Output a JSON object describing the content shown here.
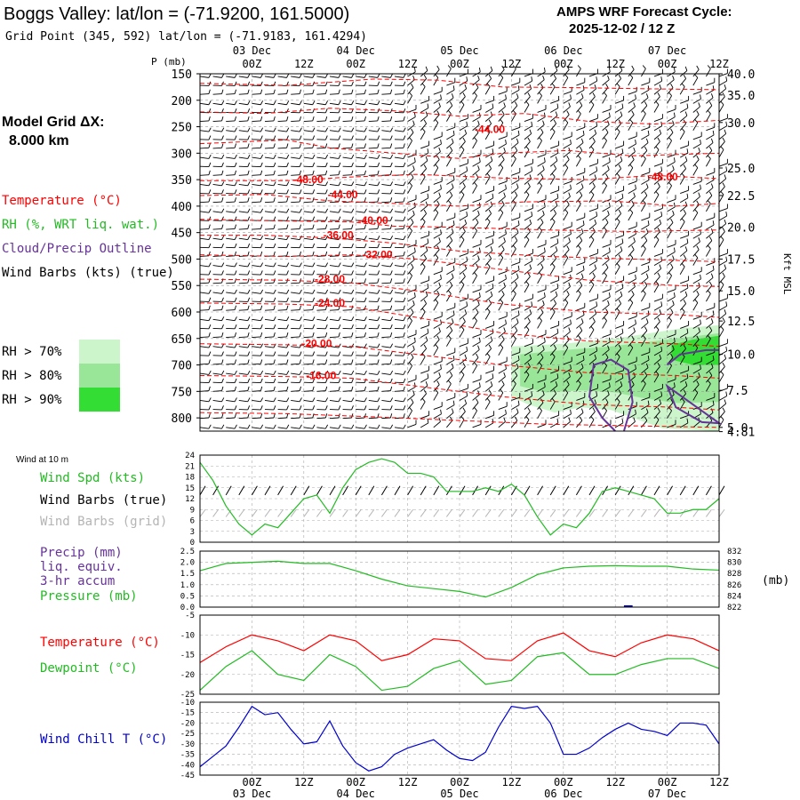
{
  "header": {
    "station_title": "Boggs Valley:  lat/lon = (-71.9200, 161.5000)",
    "grid_point": "Grid Point (345, 592) lat/lon = (-71.9183, 161.4294)",
    "cycle_title": "AMPS WRF Forecast Cycle:",
    "cycle_value": "2025-12-02 / 12  Z",
    "model_grid_label": "Model Grid ΔX:",
    "model_grid_value": "8.000 km"
  },
  "legend": {
    "temperature": "Temperature (°C)",
    "rh": "RH (%, WRT liq. wat.)",
    "cloud": "Cloud/Precip Outline",
    "wind": "Wind Barbs (kts) (true)",
    "rh70": "RH > 70%",
    "rh80": "RH > 80%",
    "rh90": "RH > 90%"
  },
  "colors": {
    "temperature": "#ff0000",
    "rh": "#22bb22",
    "cloud": "#663399",
    "wind": "#000000",
    "wind_grid": "#b4b4b4",
    "windchill": "#0000cc",
    "rh70": "#ccf5cc",
    "rh80": "#99e699",
    "rh90": "#33dd33"
  },
  "chart_data": [
    {
      "type": "contour",
      "name": "cross-section",
      "ylabel": "P (mb)",
      "yticks": [
        150,
        200,
        250,
        300,
        350,
        400,
        450,
        500,
        550,
        600,
        650,
        700,
        750,
        800
      ],
      "ylim": [
        150,
        825
      ],
      "right_axis_label": "Kft MSL",
      "right_ticks": [
        {
          "p": 150,
          "label": "40.0"
        },
        {
          "p": 190,
          "label": "35.0"
        },
        {
          "p": 242,
          "label": "30.0"
        },
        {
          "p": 328,
          "label": "25.0"
        },
        {
          "p": 380,
          "label": "22.5"
        },
        {
          "p": 440,
          "label": "20.0"
        },
        {
          "p": 500,
          "label": "17.5"
        },
        {
          "p": 560,
          "label": "15.0"
        },
        {
          "p": 617,
          "label": "12.5"
        },
        {
          "p": 680,
          "label": "10.0"
        },
        {
          "p": 748,
          "label": "7.5"
        },
        {
          "p": 818,
          "label": "5.0"
        },
        {
          "p": 826,
          "label": "4.81"
        }
      ],
      "x_day_labels": [
        "03 Dec",
        "04 Dec",
        "05 Dec",
        "06 Dec",
        "07 Dec"
      ],
      "x_hour_labels": [
        "00Z",
        "12Z",
        "00Z",
        "12Z",
        "00Z",
        "12Z",
        "00Z",
        "12Z",
        "00Z",
        "12Z"
      ],
      "x_hour_values": [
        12,
        24,
        36,
        48,
        60,
        72,
        84,
        96,
        108,
        120
      ],
      "x_range": [
        0,
        120
      ],
      "temperature_contours": [
        {
          "label": "-48.00",
          "level": 350,
          "x": 25
        },
        {
          "label": "-44.00",
          "level": 255,
          "x": 67
        },
        {
          "label": "-44.00",
          "level": 378,
          "x": 33
        },
        {
          "label": "-48.00",
          "level": 345,
          "x": 107
        },
        {
          "label": "-40.00",
          "level": 427,
          "x": 40
        },
        {
          "label": "-36.00",
          "level": 455,
          "x": 32
        },
        {
          "label": "-32.00",
          "level": 492,
          "x": 41
        },
        {
          "label": "-28.00",
          "level": 538,
          "x": 30
        },
        {
          "label": "-24.00",
          "level": 583,
          "x": 30
        },
        {
          "label": "-20.00",
          "level": 660,
          "x": 27
        },
        {
          "label": "-16.00",
          "level": 720,
          "x": 28
        }
      ]
    },
    {
      "type": "line",
      "name": "wind-10m",
      "title": "Wind at 10 m",
      "series_label": "Wind Spd (kts)",
      "barbs_true_label": "Wind Barbs (true)",
      "barbs_grid_label": "Wind Barbs (grid)",
      "yticks": [
        "0",
        "3",
        "6",
        "9",
        "12",
        "15",
        "18",
        "21",
        "24"
      ],
      "ylim": [
        0,
        24
      ],
      "x": [
        0,
        3,
        6,
        9,
        12,
        15,
        18,
        21,
        24,
        27,
        30,
        33,
        36,
        39,
        42,
        45,
        48,
        51,
        54,
        57,
        60,
        63,
        66,
        69,
        72,
        75,
        78,
        81,
        84,
        87,
        90,
        93,
        96,
        99,
        102,
        105,
        108,
        111,
        114,
        117,
        120
      ],
      "values": [
        22,
        17,
        10,
        5,
        2,
        5,
        4,
        8,
        12,
        13,
        8,
        15,
        20,
        22,
        23,
        22,
        19,
        19,
        18,
        14,
        14,
        14,
        15,
        14,
        16,
        13,
        7,
        2,
        5,
        4,
        8,
        14,
        15,
        14,
        13,
        12,
        8,
        8,
        9,
        9,
        12
      ]
    },
    {
      "type": "line",
      "name": "precip-pressure",
      "precip_label": "Precip (mm)",
      "precip_label2": "liq. equiv.",
      "precip_label3": "3-hr accum",
      "pressure_label": "Pressure (mb)",
      "unit_label": "(mb)",
      "left_ticks": [
        "0.0",
        "0.5",
        "1.0",
        "1.5",
        "2.0",
        "2.5"
      ],
      "left_ylim": [
        0,
        2.5
      ],
      "right_ticks": [
        "822",
        "824",
        "826",
        "828",
        "830",
        "832"
      ],
      "right_ylim": [
        822,
        832
      ],
      "x": [
        0,
        6,
        12,
        18,
        24,
        30,
        36,
        42,
        48,
        54,
        60,
        66,
        72,
        78,
        84,
        90,
        96,
        102,
        108,
        114,
        120
      ],
      "pressure": [
        828.5,
        829.8,
        830.0,
        830.2,
        829.8,
        829.8,
        828.5,
        827.0,
        825.8,
        825.3,
        824.8,
        823.8,
        825.5,
        827.8,
        829.0,
        829.3,
        829.4,
        829.3,
        829.3,
        828.8,
        828.6
      ],
      "precip": [
        0,
        0,
        0,
        0,
        0,
        0,
        0,
        0,
        0,
        0,
        0,
        0,
        0,
        0,
        0,
        0,
        0,
        0,
        0,
        0,
        0
      ]
    },
    {
      "type": "line",
      "name": "temp-dewpoint",
      "temp_label": "Temperature (°C)",
      "dew_label": "Dewpoint (°C)",
      "yticks": [
        "-5",
        "-10",
        "-15",
        "-20",
        "-25"
      ],
      "ylim": [
        -25,
        -5
      ],
      "x": [
        0,
        6,
        12,
        18,
        24,
        30,
        36,
        42,
        48,
        54,
        60,
        66,
        72,
        78,
        84,
        90,
        96,
        102,
        108,
        114,
        120
      ],
      "temperature": [
        -17,
        -13,
        -10,
        -11.5,
        -14,
        -10,
        -11.5,
        -16.5,
        -15,
        -11,
        -11.5,
        -16,
        -16.5,
        -11.5,
        -9.5,
        -14,
        -15.5,
        -12,
        -10,
        -11,
        -14
      ],
      "dewpoint": [
        -24,
        -18,
        -14,
        -20,
        -21.5,
        -15,
        -18,
        -24,
        -23,
        -18.5,
        -16.5,
        -22.5,
        -21.5,
        -15.5,
        -14.5,
        -20,
        -20,
        -17.5,
        -16,
        -16,
        -18.5
      ]
    },
    {
      "type": "line",
      "name": "windchill",
      "label": "Wind Chill T (°C)",
      "yticks": [
        "-10",
        "-15",
        "-20",
        "-25",
        "-30",
        "-35",
        "-40",
        "-45"
      ],
      "ylim": [
        -45,
        -10
      ],
      "x": [
        0,
        3,
        6,
        9,
        12,
        15,
        18,
        21,
        24,
        27,
        30,
        33,
        36,
        39,
        42,
        45,
        48,
        51,
        54,
        57,
        60,
        63,
        66,
        69,
        72,
        75,
        78,
        81,
        84,
        87,
        90,
        93,
        96,
        99,
        102,
        105,
        108,
        111,
        114,
        117,
        120
      ],
      "values": [
        -41,
        -36,
        -31,
        -22,
        -12,
        -16,
        -15,
        -23,
        -30,
        -29,
        -19,
        -31,
        -39,
        -43,
        -41,
        -35,
        -32,
        -30,
        -28,
        -33,
        -37,
        -38,
        -34,
        -22,
        -12,
        -13,
        -12,
        -20,
        -35,
        -35,
        -32,
        -27,
        -23,
        -20,
        -23,
        -24,
        -26,
        -20,
        -20,
        -21,
        -30
      ]
    }
  ],
  "bottom_axis": {
    "hour_labels": [
      "00Z",
      "12Z",
      "00Z",
      "12Z",
      "00Z",
      "12Z",
      "00Z",
      "12Z",
      "00Z",
      "12Z"
    ],
    "day_labels": [
      "03 Dec",
      "04 Dec",
      "05 Dec",
      "06 Dec",
      "07 Dec"
    ]
  }
}
